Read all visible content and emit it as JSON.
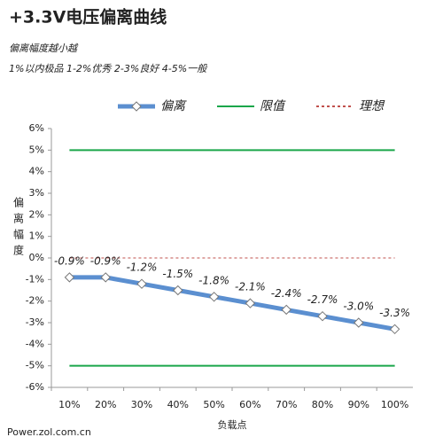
{
  "chart_data": {
    "type": "line",
    "title": "+3.3V电压偏离曲线",
    "subtitle": "偏离幅度越小越",
    "note": "1%以内极品 1-2%优秀 2-3%良好 4-5%一般",
    "y_label": "偏离幅度",
    "x_label": "负载点",
    "source": "Power.zol.com.cn",
    "categories": [
      "10%",
      "20%",
      "30%",
      "40%",
      "50%",
      "60%",
      "70%",
      "80%",
      "90%",
      "100%"
    ],
    "series": [
      {
        "name": "偏离",
        "color": "#5b8fd0",
        "values": [
          -0.9,
          -0.9,
          -1.2,
          -1.5,
          -1.8,
          -2.1,
          -2.4,
          -2.7,
          -3.0,
          -3.3
        ],
        "value_labels": [
          "-0.9%",
          "-0.9%",
          "-1.2%",
          "-1.5%",
          "-1.8%",
          "-2.1%",
          "-2.4%",
          "-2.7%",
          "-3.0%",
          "-3.3%"
        ]
      },
      {
        "name": "限值",
        "color": "#1aa64a",
        "values": [
          5,
          5,
          5,
          5,
          5,
          5,
          5,
          5,
          5,
          5
        ],
        "lower_values": [
          -5,
          -5,
          -5,
          -5,
          -5,
          -5,
          -5,
          -5,
          -5,
          -5
        ]
      },
      {
        "name": "理想",
        "color": "#c0504d",
        "dashed": true,
        "values": [
          0,
          0,
          0,
          0,
          0,
          0,
          0,
          0,
          0,
          0
        ]
      }
    ],
    "ylim": [
      -6,
      6
    ],
    "yticks": [
      {
        "value": -6,
        "label": "-6%"
      },
      {
        "value": -5,
        "label": "-5%"
      },
      {
        "value": -4,
        "label": "-4%"
      },
      {
        "value": -3,
        "label": "-3%"
      },
      {
        "value": -2,
        "label": "-2%"
      },
      {
        "value": -1,
        "label": "-1%"
      },
      {
        "value": 0,
        "label": "0%"
      },
      {
        "value": 1,
        "label": "1%"
      },
      {
        "value": 2,
        "label": "2%"
      },
      {
        "value": 3,
        "label": "3%"
      },
      {
        "value": 4,
        "label": "4%"
      },
      {
        "value": 5,
        "label": "5%"
      },
      {
        "value": 6,
        "label": "6%"
      }
    ],
    "grid": false
  }
}
